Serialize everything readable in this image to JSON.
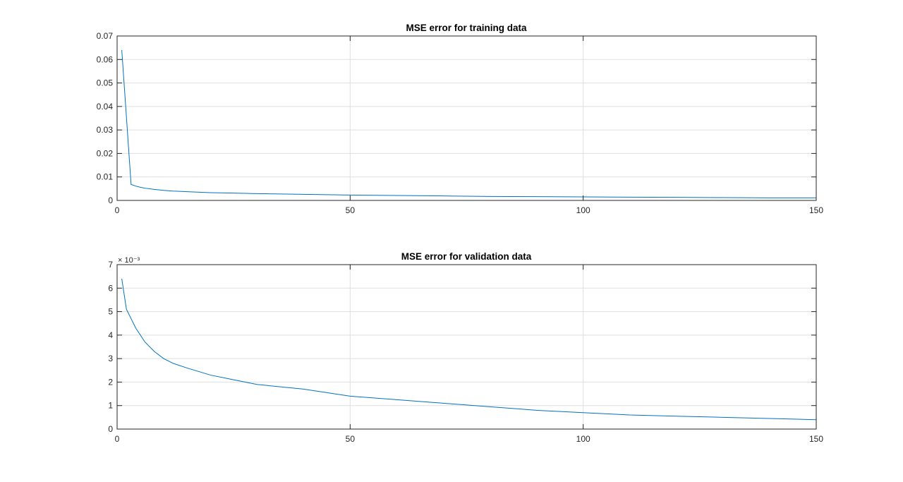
{
  "figure": {
    "background": "#ffffff",
    "line_color": "#0072bd",
    "grid_color": "#dfdfdf",
    "axis_color": "#262626"
  },
  "chart_data": [
    {
      "type": "line",
      "title": "MSE error for training data",
      "xlabel": "",
      "ylabel": "",
      "xlim": [
        0,
        150
      ],
      "ylim": [
        0,
        0.07
      ],
      "xticks": [
        0,
        50,
        100,
        150
      ],
      "yticks": [
        0,
        0.01,
        0.02,
        0.03,
        0.04,
        0.05,
        0.06,
        0.07
      ],
      "xtick_labels": [
        "0",
        "50",
        "100",
        "150"
      ],
      "ytick_labels": [
        "0",
        "0.01",
        "0.02",
        "0.03",
        "0.04",
        "0.05",
        "0.06",
        "0.07"
      ],
      "exponent_label": "",
      "grid": true,
      "legend": "none",
      "series": [
        {
          "x": [
            1,
            2,
            3,
            4,
            5,
            6,
            8,
            10,
            12,
            15,
            20,
            25,
            30,
            40,
            50,
            60,
            70,
            80,
            90,
            100,
            110,
            120,
            130,
            140,
            150
          ],
          "y": [
            0.064,
            0.0355,
            0.0068,
            0.0061,
            0.0056,
            0.0052,
            0.0047,
            0.0043,
            0.004,
            0.0037,
            0.0033,
            0.0031,
            0.0029,
            0.0026,
            0.0023,
            0.0021,
            0.0019,
            0.0017,
            0.0016,
            0.0015,
            0.0014,
            0.0013,
            0.0012,
            0.0011,
            0.0011
          ]
        }
      ]
    },
    {
      "type": "line",
      "title": "MSE error for validation data",
      "xlabel": "",
      "ylabel": "",
      "xlim": [
        0,
        150
      ],
      "ylim": [
        0,
        0.007
      ],
      "xticks": [
        0,
        50,
        100,
        150
      ],
      "yticks": [
        0,
        0.001,
        0.002,
        0.003,
        0.004,
        0.005,
        0.006,
        0.007
      ],
      "xtick_labels": [
        "0",
        "50",
        "100",
        "150"
      ],
      "ytick_labels": [
        "0",
        "1",
        "2",
        "3",
        "4",
        "5",
        "6",
        "7"
      ],
      "exponent_label": "× 10⁻³",
      "grid": true,
      "legend": "none",
      "series": [
        {
          "x": [
            1,
            2,
            3,
            4,
            5,
            6,
            8,
            10,
            12,
            15,
            20,
            25,
            30,
            40,
            50,
            60,
            70,
            80,
            90,
            100,
            110,
            120,
            130,
            140,
            150
          ],
          "y": [
            0.0064,
            0.0051,
            0.0047,
            0.0043,
            0.004,
            0.0037,
            0.0033,
            0.003,
            0.0028,
            0.0026,
            0.0023,
            0.0021,
            0.0019,
            0.0017,
            0.0014,
            0.00125,
            0.0011,
            0.00095,
            0.0008,
            0.0007,
            0.0006,
            0.00055,
            0.0005,
            0.00045,
            0.0004
          ]
        }
      ]
    }
  ]
}
